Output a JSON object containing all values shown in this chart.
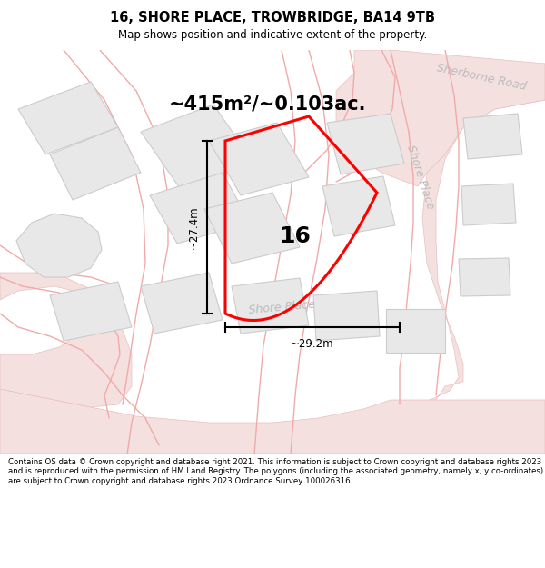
{
  "title": "16, SHORE PLACE, TROWBRIDGE, BA14 9TB",
  "subtitle": "Map shows position and indicative extent of the property.",
  "area_label": "~415m²/~0.103ac.",
  "plot_number": "16",
  "dim_width": "~29.2m",
  "dim_height": "~27.4m",
  "road_label_bottom": "Shore Place",
  "road_label_right": "Shore Place",
  "road_label_top_right": "Sherborne Road",
  "copyright_text": "Contains OS data © Crown copyright and database right 2021. This information is subject to Crown copyright and database rights 2023 and is reproduced with the permission of HM Land Registry. The polygons (including the associated geometry, namely x, y co-ordinates) are subject to Crown copyright and database rights 2023 Ordnance Survey 100026316.",
  "bg_color": "#f8f8f8",
  "building_color": "#e8e8e8",
  "building_stroke": "#cccccc",
  "road_line_color": "#f0aaaa",
  "road_fill_color": "#f5e0e0",
  "road_fill_stroke": "#e8c0c0",
  "plot_stroke": "#ff0000",
  "road_text_color": "#bbbbbb",
  "figsize": [
    6.0,
    6.25
  ],
  "dpi": 100,
  "title_fontsize": 10.5,
  "subtitle_fontsize": 8.5,
  "area_fontsize": 15,
  "plot_num_fontsize": 18,
  "dim_fontsize": 8.5,
  "road_fontsize": 9,
  "copy_fontsize": 6.2
}
